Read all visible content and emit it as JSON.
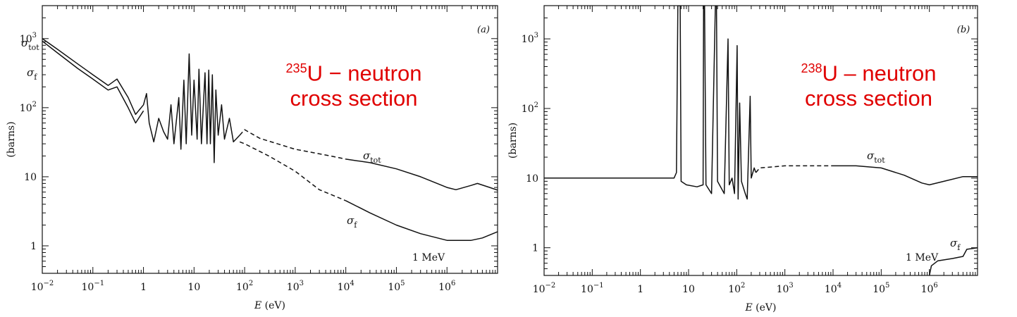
{
  "charts": [
    {
      "panel_label": "(a)",
      "overlay": {
        "isotope_mass": "235",
        "line1_rest": "U − neutron",
        "line2": "cross section"
      },
      "ylabel": "(barns)",
      "xlabel": "E (eV)",
      "note": "1 MeV",
      "series_labels": {
        "tot": "σtot",
        "f": "σf"
      }
    },
    {
      "panel_label": "(b)",
      "overlay": {
        "isotope_mass": "238",
        "line1_rest": "U – neutron",
        "line2": "cross section"
      },
      "ylabel": "(barns)",
      "xlabel": "E (eV)",
      "note": "1 MeV",
      "series_labels": {
        "tot": "σtot",
        "f": "σf"
      }
    }
  ],
  "chart_data": [
    {
      "type": "line",
      "title": "",
      "xlabel": "E (eV)",
      "ylabel": "(barns)",
      "xscale": "log",
      "yscale": "log",
      "xlim": [
        0.01,
        10000000
      ],
      "ylim": [
        0.4,
        3000
      ],
      "x_ticks": [
        "10−2",
        "10−1",
        "1",
        "10",
        "102",
        "103",
        "104",
        "105",
        "106"
      ],
      "y_ticks": [
        "1",
        "10",
        "102",
        "103"
      ],
      "series": [
        {
          "name": "σtot",
          "points": [
            [
              0.01,
              1000
            ],
            [
              0.02,
              700
            ],
            [
              0.05,
              430
            ],
            [
              0.1,
              300
            ],
            [
              0.2,
              210
            ],
            [
              0.3,
              260
            ],
            [
              0.5,
              140
            ],
            [
              0.7,
              80
            ],
            [
              1.0,
              110
            ],
            [
              1.15,
              160
            ],
            [
              1.3,
              60
            ],
            [
              1.6,
              32
            ],
            [
              2.0,
              70
            ],
            [
              2.5,
              45
            ],
            [
              3.0,
              35
            ],
            [
              3.5,
              110
            ],
            [
              4.0,
              30
            ],
            [
              5.0,
              140
            ],
            [
              5.5,
              25
            ],
            [
              6.3,
              250
            ],
            [
              7.0,
              30
            ],
            [
              8.0,
              600
            ],
            [
              9.0,
              40
            ],
            [
              10.0,
              250
            ],
            [
              11.5,
              35
            ],
            [
              12.5,
              360
            ],
            [
              14.0,
              30
            ],
            [
              16.5,
              320
            ],
            [
              18.0,
              30
            ],
            [
              19.5,
              350
            ],
            [
              21.0,
              30
            ],
            [
              23.0,
              300
            ],
            [
              25.0,
              16
            ],
            [
              27.0,
              180
            ],
            [
              30.0,
              40
            ],
            [
              35.0,
              110
            ],
            [
              40.0,
              35
            ],
            [
              50.0,
              70
            ],
            [
              60.0,
              32
            ],
            [
              80.0,
              40
            ]
          ],
          "dashed_points": [
            [
              80.0,
              40
            ],
            [
              100,
              48
            ],
            [
              200,
              36
            ],
            [
              1000,
              25
            ],
            [
              5000,
              20
            ],
            [
              10000,
              18
            ]
          ],
          "tail_points": [
            [
              10000,
              18
            ],
            [
              30000,
              16
            ],
            [
              100000,
              13
            ],
            [
              300000,
              10
            ],
            [
              1000000,
              7
            ],
            [
              1500000,
              6.5
            ],
            [
              3000000,
              7.5
            ],
            [
              4000000,
              8
            ],
            [
              7000000,
              7
            ],
            [
              10000000,
              6.4
            ]
          ]
        },
        {
          "name": "σf",
          "points": [
            [
              0.01,
              920
            ],
            [
              0.02,
              620
            ],
            [
              0.05,
              370
            ],
            [
              0.1,
              260
            ],
            [
              0.2,
              180
            ],
            [
              0.3,
              200
            ],
            [
              0.5,
              100
            ],
            [
              0.7,
              60
            ],
            [
              1.0,
              90
            ]
          ],
          "dashed_points": [
            [
              80.0,
              32
            ],
            [
              100,
              30
            ],
            [
              300,
              20
            ],
            [
              1000,
              12
            ],
            [
              3000,
              6.5
            ],
            [
              10000,
              4.5
            ]
          ],
          "tail_points": [
            [
              10000,
              4.5
            ],
            [
              30000,
              3
            ],
            [
              100000,
              2
            ],
            [
              300000,
              1.5
            ],
            [
              1000000,
              1.2
            ],
            [
              3000000,
              1.2
            ],
            [
              5000000,
              1.3
            ],
            [
              10000000,
              1.6
            ]
          ]
        }
      ]
    },
    {
      "type": "line",
      "title": "",
      "xlabel": "E (eV)",
      "ylabel": "(barns)",
      "xscale": "log",
      "yscale": "log",
      "xlim": [
        0.01,
        10000000
      ],
      "ylim": [
        0.4,
        3000
      ],
      "x_ticks": [
        "10−2",
        "10−1",
        "1",
        "10",
        "102",
        "103",
        "104",
        "105",
        "106"
      ],
      "y_ticks": [
        "1",
        "10",
        "102",
        "103"
      ],
      "series": [
        {
          "name": "σtot",
          "points": [
            [
              0.01,
              10
            ],
            [
              1.0,
              10
            ],
            [
              5.0,
              10
            ],
            [
              5.6,
              12
            ],
            [
              6.0,
              3000
            ],
            [
              6.7,
              3000
            ],
            [
              7.0,
              9
            ],
            [
              9.0,
              8
            ],
            [
              15.0,
              7.5
            ],
            [
              20.0,
              8
            ],
            [
              20.5,
              3000
            ],
            [
              21.5,
              3000
            ],
            [
              23.0,
              8
            ],
            [
              30.0,
              6
            ],
            [
              36.0,
              3000
            ],
            [
              38.0,
              3000
            ],
            [
              40.0,
              9
            ],
            [
              55.0,
              6
            ],
            [
              66.0,
              1000
            ],
            [
              70.0,
              8
            ],
            [
              80.0,
              10
            ],
            [
              90.0,
              6
            ],
            [
              102.0,
              800
            ],
            [
              107.0,
              5
            ],
            [
              115.0,
              120
            ],
            [
              125.0,
              9
            ],
            [
              150.0,
              6
            ],
            [
              165.0,
              5
            ],
            [
              190.0,
              150
            ],
            [
              200.0,
              10
            ],
            [
              230.0,
              14
            ],
            [
              250.0,
              12
            ]
          ],
          "dashed_points": [
            [
              250.0,
              12
            ],
            [
              300,
              14
            ],
            [
              1000,
              15
            ],
            [
              10000,
              15
            ]
          ],
          "tail_points": [
            [
              10000,
              15
            ],
            [
              30000,
              15
            ],
            [
              100000,
              14
            ],
            [
              300000,
              11
            ],
            [
              700000,
              8.5
            ],
            [
              1000000,
              8
            ],
            [
              2000000,
              9
            ],
            [
              5000000,
              10.5
            ],
            [
              10000000,
              10.5
            ]
          ]
        },
        {
          "name": "σf",
          "points": [
            [
              1000000,
              0.4
            ],
            [
              1100000,
              0.55
            ],
            [
              1500000,
              0.65
            ],
            [
              3000000,
              0.7
            ],
            [
              5000000,
              0.75
            ],
            [
              6000000,
              0.95
            ],
            [
              10000000,
              1.0
            ]
          ],
          "dashed_points": [],
          "tail_points": []
        }
      ]
    }
  ]
}
